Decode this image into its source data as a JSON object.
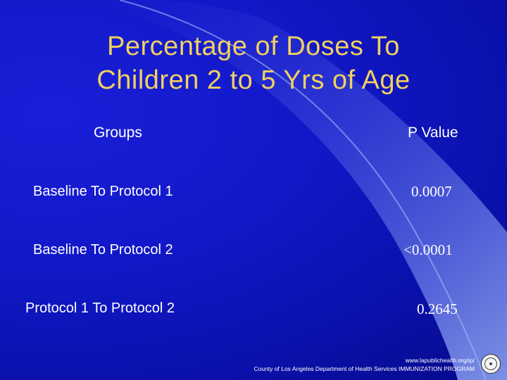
{
  "slide": {
    "title_line1": "Percentage of Doses To",
    "title_line2": "Children 2 to 5 Yrs of Age",
    "table": {
      "header_groups": "Groups",
      "header_pvalue": "P Value",
      "rows": [
        {
          "group": "Baseline To Protocol 1",
          "p_value": "0.0007"
        },
        {
          "group": "Baseline To Protocol 2",
          "p_value": "<0.0001"
        },
        {
          "group": "Protocol 1 To Protocol 2",
          "p_value": "0.2645"
        }
      ]
    },
    "footer": {
      "url": "www.lapublichealth.org/ip/",
      "department": "County of Los Angeles Department of Health Services IMMUNIZATION PROGRAM"
    },
    "colors": {
      "background": "#1218c8",
      "title": "#f0d060",
      "text": "#ffffff"
    },
    "icons": [
      "county-seal-icon"
    ]
  }
}
